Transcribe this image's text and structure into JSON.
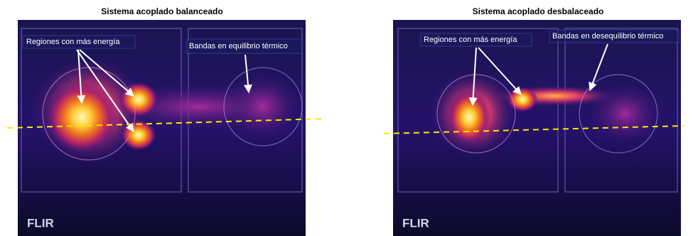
{
  "panels": [
    {
      "title": "Sistema acoplado balanceado",
      "annotations": [
        "Regiones con más energía",
        "Bandas en equilibrio térmico"
      ],
      "logo": "FLIR"
    },
    {
      "title": "Sistema acoplado desbalaceado",
      "annotations": [
        "Regiones con más energía",
        "Bandas en desequilibrio térmico"
      ],
      "logo": "FLIR"
    }
  ]
}
